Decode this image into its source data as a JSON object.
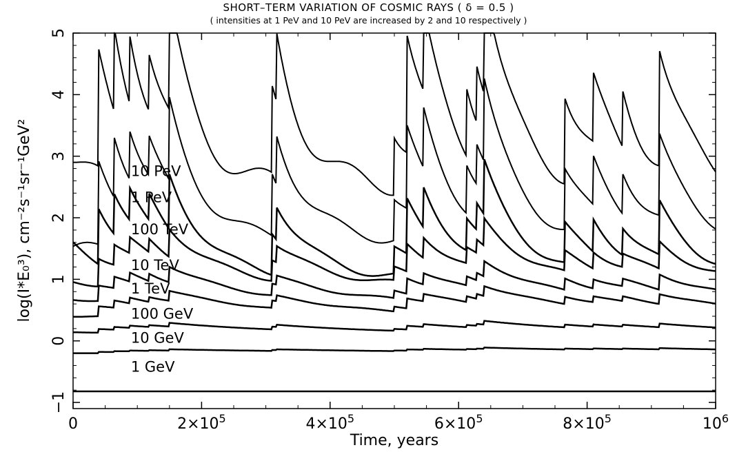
{
  "chart_data": {
    "type": "line",
    "title": "SHORT–TERM VARIATION OF COSMIC RAYS ( δ = 0.5 )",
    "subtitle": "( intensities  at 1 PeV and 10 PeV are increased by 2 and 10 respectively )",
    "xlabel": "Time, years",
    "ylabel": "log(I*E₀³), cm⁻²s⁻¹sr⁻¹GeV²",
    "xlim": [
      0,
      1000000
    ],
    "ylim": [
      -1.1,
      5.0
    ],
    "x_ticks": [
      {
        "value": 0,
        "mant": "0",
        "exp": ""
      },
      {
        "value": 200000,
        "mant": "2×10",
        "exp": "5"
      },
      {
        "value": 400000,
        "mant": "4×10",
        "exp": "5"
      },
      {
        "value": 600000,
        "mant": "6×10",
        "exp": "5"
      },
      {
        "value": 800000,
        "mant": "8×10",
        "exp": "5"
      },
      {
        "value": 1000000,
        "mant": "10",
        "exp": "6"
      }
    ],
    "y_ticks": [
      -1,
      0,
      1,
      2,
      3,
      4,
      5
    ],
    "y_tick_labels": [
      "−1",
      "0",
      "1",
      "2",
      "3",
      "4",
      "5"
    ],
    "grid": false,
    "events": [
      40000,
      63000,
      88000,
      118000,
      150000,
      310000,
      317000,
      500000,
      520000,
      545000,
      612000,
      628000,
      640000,
      765000,
      810000,
      855000,
      912000
    ],
    "series": [
      {
        "name": "10 PeV",
        "label_x": 90000,
        "label_y": 2.68,
        "base": 2.5,
        "amp": 1.9,
        "tau": 45000,
        "start": 2.9,
        "wiggle": 0.18
      },
      {
        "name": "1 PeV",
        "label_x": 90000,
        "label_y": 2.25,
        "base": 1.62,
        "amp": 1.35,
        "tau": 50000,
        "start": 1.45,
        "wiggle": 0.1
      },
      {
        "name": "100 TeV",
        "label_x": 90000,
        "label_y": 1.73,
        "base": 1.0,
        "amp": 0.9,
        "tau": 60000,
        "start": 1.55,
        "wiggle": 0.06
      },
      {
        "name": "10 TeV",
        "label_x": 90000,
        "label_y": 1.15,
        "base": 0.88,
        "amp": 0.45,
        "tau": 80000,
        "start": 0.95,
        "wiggle": 0.04
      },
      {
        "name": "1 TeV",
        "label_x": 90000,
        "label_y": 0.77,
        "base": 0.6,
        "amp": 0.25,
        "tau": 110000,
        "start": 0.68,
        "wiggle": 0.02
      },
      {
        "name": "100 GeV",
        "label_x": 90000,
        "label_y": 0.36,
        "base": 0.38,
        "amp": 0.16,
        "tau": 150000,
        "start": 0.4,
        "wiggle": 0.01
      },
      {
        "name": "10 GeV",
        "label_x": 90000,
        "label_y": -0.03,
        "base": 0.1,
        "amp": 0.06,
        "tau": 200000,
        "start": 0.14,
        "wiggle": 0.0
      },
      {
        "name": "1 GeV",
        "label_x": 90000,
        "label_y": -0.5,
        "base": -0.2,
        "amp": 0.02,
        "tau": 300000,
        "start": -0.2,
        "wiggle": 0.0
      },
      {
        "name": "",
        "label_x": 0,
        "label_y": 0,
        "base": -0.82,
        "amp": 0.0,
        "tau": 300000,
        "start": -0.82,
        "wiggle": 0.0
      }
    ]
  }
}
